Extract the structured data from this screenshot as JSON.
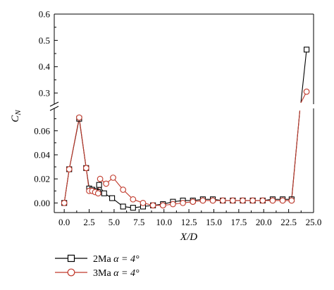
{
  "chart_data": {
    "type": "line",
    "title": "",
    "xlabel": "X/D",
    "ylabel": "C_N",
    "xlim": [
      -1,
      25
    ],
    "x_ticks": [
      0.0,
      2.5,
      5.0,
      7.5,
      10.0,
      12.5,
      15.0,
      17.5,
      20.0,
      22.5,
      25.0
    ],
    "x_tick_labels": [
      "0.0",
      "2.5",
      "5.0",
      "7.5",
      "10.0",
      "12.5",
      "15.0",
      "17.5",
      "20.0",
      "22.5",
      "25.0"
    ],
    "y_axis_break": true,
    "lower_ylim": [
      -0.008,
      0.078
    ],
    "lower_ticks": [
      0.0,
      0.02,
      0.04,
      0.06
    ],
    "lower_tick_labels": [
      "0.00",
      "0.02",
      "0.04",
      "0.06"
    ],
    "upper_ylim": [
      0.2575,
      0.6
    ],
    "upper_ticks": [
      0.3,
      0.4,
      0.5,
      0.6
    ],
    "upper_tick_labels": [
      "0.3",
      "0.4",
      "0.5",
      "0.6"
    ],
    "legend_position": "bottom-left",
    "series": [
      {
        "name": "2Ma",
        "legend_alpha": "α = 4°",
        "color": "#000000",
        "marker": "square",
        "points": [
          [
            0.0,
            0.0
          ],
          [
            0.5,
            0.028
          ],
          [
            1.5,
            0.07
          ],
          [
            2.2,
            0.029
          ],
          [
            2.5,
            0.012
          ],
          [
            2.8,
            0.011
          ],
          [
            3.1,
            0.01
          ],
          [
            3.4,
            0.009
          ],
          [
            3.5,
            0.015
          ],
          [
            4.0,
            0.008
          ],
          [
            4.8,
            0.004
          ],
          [
            5.9,
            -0.003
          ],
          [
            6.9,
            -0.004
          ],
          [
            7.9,
            -0.003
          ],
          [
            8.9,
            -0.002
          ],
          [
            9.9,
            -0.001
          ],
          [
            10.9,
            0.001
          ],
          [
            11.9,
            0.002
          ],
          [
            12.9,
            0.002
          ],
          [
            13.9,
            0.003
          ],
          [
            14.9,
            0.003
          ],
          [
            15.9,
            0.002
          ],
          [
            16.9,
            0.002
          ],
          [
            17.9,
            0.002
          ],
          [
            18.9,
            0.002
          ],
          [
            19.9,
            0.002
          ],
          [
            20.9,
            0.003
          ],
          [
            21.9,
            0.003
          ],
          [
            22.8,
            0.003
          ],
          [
            24.3,
            0.465
          ]
        ]
      },
      {
        "name": "3Ma",
        "legend_alpha": "α = 4°",
        "color": "#c0392b",
        "marker": "circle",
        "points": [
          [
            0.0,
            0.0
          ],
          [
            0.5,
            0.028
          ],
          [
            1.5,
            0.071
          ],
          [
            2.2,
            0.029
          ],
          [
            2.5,
            0.01
          ],
          [
            2.8,
            0.01
          ],
          [
            3.1,
            0.009
          ],
          [
            3.4,
            0.008
          ],
          [
            3.6,
            0.02
          ],
          [
            4.2,
            0.016
          ],
          [
            4.9,
            0.021
          ],
          [
            5.9,
            0.011
          ],
          [
            6.9,
            0.003
          ],
          [
            7.9,
            0.0
          ],
          [
            8.9,
            -0.002
          ],
          [
            9.9,
            -0.002
          ],
          [
            10.9,
            -0.001
          ],
          [
            11.9,
            0.0
          ],
          [
            12.9,
            0.001
          ],
          [
            13.9,
            0.002
          ],
          [
            14.9,
            0.002
          ],
          [
            15.9,
            0.002
          ],
          [
            16.9,
            0.002
          ],
          [
            17.9,
            0.002
          ],
          [
            18.9,
            0.002
          ],
          [
            19.9,
            0.002
          ],
          [
            20.9,
            0.002
          ],
          [
            21.9,
            0.002
          ],
          [
            22.8,
            0.002
          ],
          [
            24.3,
            0.305
          ]
        ]
      }
    ]
  }
}
